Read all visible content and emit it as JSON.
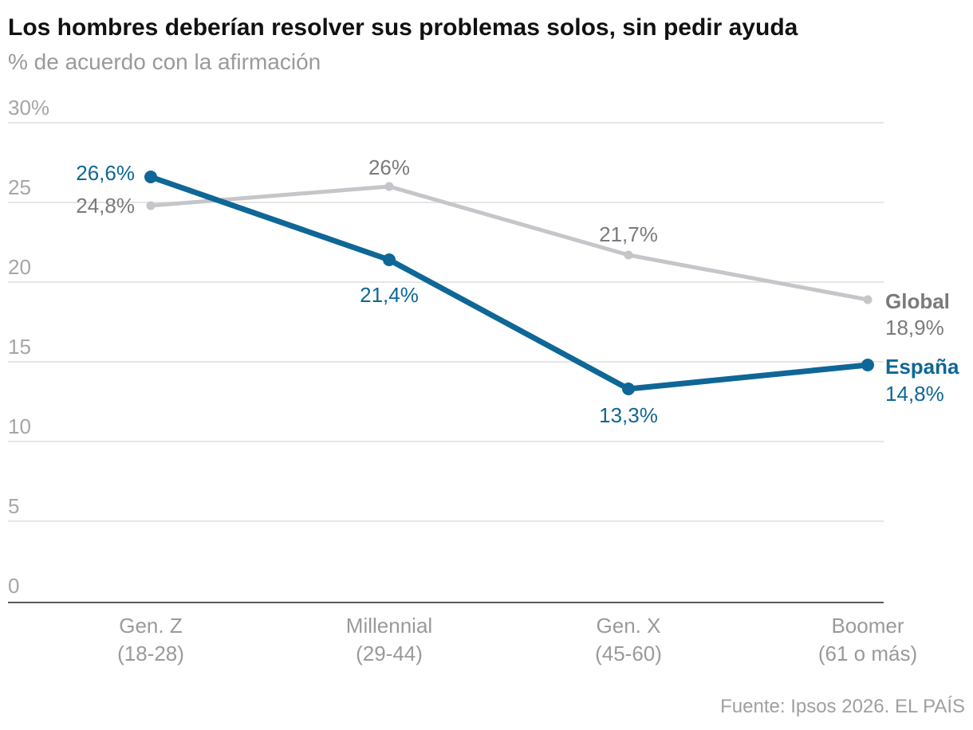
{
  "chart_data": {
    "type": "line",
    "title": "Los hombres deberían resolver sus problemas solos, sin pedir ayuda",
    "subtitle": "% de acuerdo con la afirmación",
    "xlabel": "",
    "ylabel": "",
    "ylim": [
      0,
      30
    ],
    "y_ticks": [
      "0",
      "5",
      "10",
      "15",
      "20",
      "25",
      "30%"
    ],
    "categories": [
      {
        "name": "Gen. Z",
        "range": "(18-28)"
      },
      {
        "name": "Millennial",
        "range": "(29-44)"
      },
      {
        "name": "Gen. X",
        "range": "(45-60)"
      },
      {
        "name": "Boomer",
        "range": "(61 o más)"
      }
    ],
    "series": [
      {
        "name": "Global",
        "color": "#c4c6c9",
        "label_color": "#7a7a7a",
        "values": [
          24.8,
          26,
          21.7,
          18.9
        ],
        "labels": [
          "24,8%",
          "26%",
          "21,7%",
          "18,9%"
        ]
      },
      {
        "name": "España",
        "color": "#0e6796",
        "label_color": "#0e6796",
        "values": [
          26.6,
          21.4,
          13.3,
          14.8
        ],
        "labels": [
          "26,6%",
          "21,4%",
          "13,3%",
          "14,8%"
        ]
      }
    ],
    "grid": true,
    "legend": "end-of-line",
    "source": "Fuente: Ipsos 2026. EL PAÍS"
  }
}
